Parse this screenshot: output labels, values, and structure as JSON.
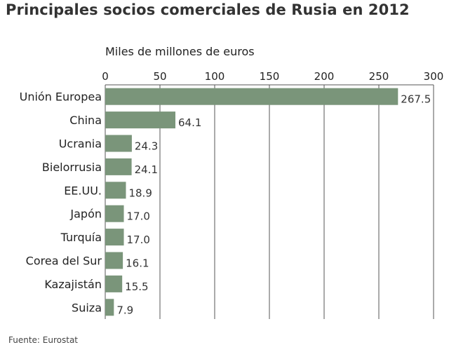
{
  "chart_data": {
    "type": "bar",
    "orientation": "horizontal",
    "title": "Principales socios comerciales de Rusia en 2012",
    "xlabel": "Miles de millones de euros",
    "ylabel": "",
    "categories": [
      "Unión Europea",
      "China",
      "Ucrania",
      "Bielorrusia",
      "EE.UU.",
      "Japón",
      "Turquía",
      "Corea del Sur",
      "Kazajistán",
      "Suiza"
    ],
    "values": [
      267.5,
      64.1,
      24.3,
      24.1,
      18.9,
      17.0,
      17.0,
      16.1,
      15.5,
      7.9
    ],
    "value_labels": [
      "267.5",
      "64.1",
      "24.3",
      "24.1",
      "18.9",
      "17.0",
      "17.0",
      "16.1",
      "15.5",
      "7.9"
    ],
    "xlim": [
      0,
      300
    ],
    "ticks": [
      "0",
      "50",
      "100",
      "150",
      "200",
      "250",
      "300"
    ],
    "tick_values": [
      0,
      50,
      100,
      150,
      200,
      250,
      300
    ],
    "grid": true,
    "bar_color": "#7a957a",
    "source": "Fuente: Eurostat"
  }
}
